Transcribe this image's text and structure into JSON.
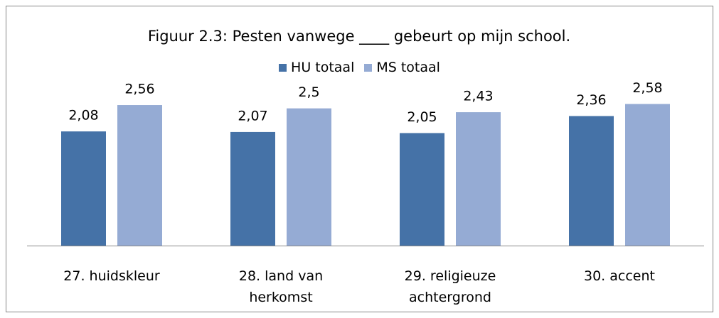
{
  "chart_data": {
    "type": "bar",
    "title": "Figuur 2.3: Pesten vanwege ____ gebeurt  op mijn school.",
    "categories": [
      "27.  huidskleur",
      "28.  land van herkomst",
      "29.  religieuze achtergrond",
      "30.  accent"
    ],
    "series": [
      {
        "name": "HU totaal",
        "color": "#4572a7",
        "values": [
          2.08,
          2.07,
          2.05,
          2.36
        ],
        "value_labels": [
          "2,08",
          "2,07",
          "2,05",
          "2,36"
        ]
      },
      {
        "name": "MS totaal",
        "color": "#95abd4",
        "values": [
          2.56,
          2.5,
          2.43,
          2.58
        ],
        "value_labels": [
          "2,56",
          "2,5",
          "2,43",
          "2,58"
        ]
      }
    ],
    "ylim": [
      0,
      3
    ],
    "legend": "top"
  }
}
